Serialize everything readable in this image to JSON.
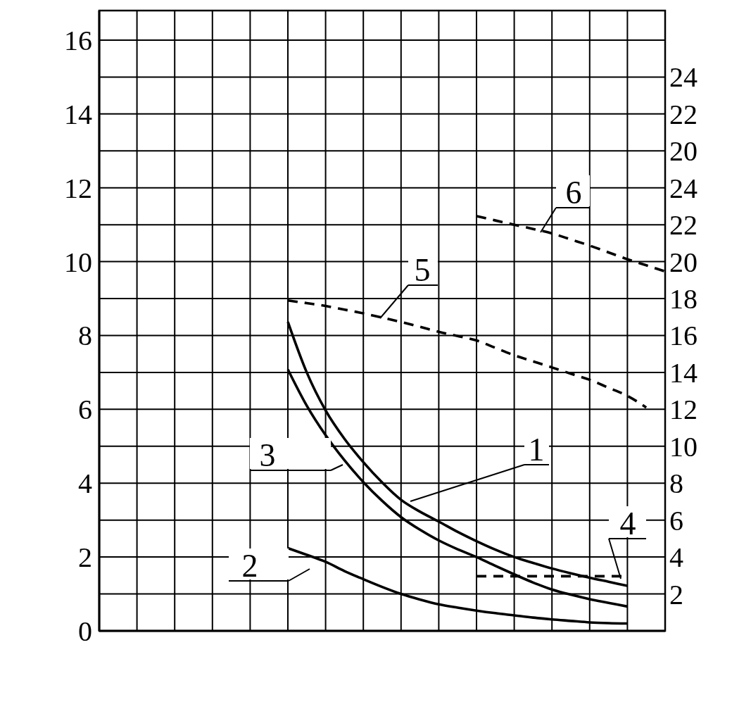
{
  "chart_data": {
    "type": "line",
    "categories": [
      null,
      null,
      null,
      null,
      null,
      null,
      null,
      null,
      null,
      null,
      null,
      null,
      null,
      null,
      null,
      null,
      null,
      null,
      null,
      null,
      null,
      null,
      null,
      null,
      null,
      null,
      null,
      null,
      null,
      null,
      null
    ],
    "ylim": [
      0,
      16.8
    ],
    "yticks": [
      0,
      {
        "value": 1,
        "label": null
      },
      2,
      {
        "value": 3,
        "label": null
      },
      4,
      {
        "value": 5,
        "label": null
      },
      6,
      {
        "value": 7,
        "label": null
      },
      8,
      {
        "value": 9,
        "label": null
      },
      10,
      {
        "value": 11,
        "label": null
      },
      12,
      {
        "value": 13,
        "label": null
      },
      14,
      {
        "value": 15,
        "label": null
      },
      16
    ],
    "y2lim": [
      0,
      33.6
    ],
    "y2ticks": [
      2,
      4,
      6,
      8,
      10,
      12,
      14,
      16,
      18,
      20,
      22,
      24
    ],
    "y3lim": [
      -6,
      27.6
    ],
    "y3ticks": [
      20,
      22,
      24
    ],
    "grid": true,
    "marker": "none",
    "series": [
      {
        "color": "#000000",
        "line_style": "solid",
        "values": [
          null,
          null,
          null,
          null,
          null,
          null,
          null,
          null,
          null,
          null,
          8.37,
          7.0,
          5.97,
          5.2,
          4.57,
          4.02,
          3.55,
          3.23,
          2.96,
          2.68,
          2.43,
          2.2,
          2.0,
          1.84,
          1.69,
          1.56,
          1.44,
          1.33,
          1.22,
          null,
          null
        ]
      },
      {
        "color": "#000000",
        "line_style": "solid",
        "values": [
          null,
          null,
          null,
          null,
          null,
          null,
          null,
          null,
          null,
          null,
          2.24,
          2.06,
          1.87,
          1.62,
          1.4,
          1.19,
          1.0,
          0.85,
          0.72,
          0.63,
          0.55,
          0.48,
          0.42,
          0.36,
          0.31,
          0.27,
          0.23,
          0.21,
          0.2,
          null,
          null
        ]
      },
      {
        "color": "#000000",
        "line_style": "solid",
        "values": [
          null,
          null,
          null,
          null,
          null,
          null,
          null,
          null,
          null,
          null,
          7.08,
          6.1,
          5.3,
          4.62,
          4.03,
          3.52,
          3.08,
          2.74,
          2.45,
          2.21,
          2.0,
          1.76,
          1.53,
          1.31,
          1.12,
          0.98,
          0.86,
          0.76,
          0.66,
          null,
          null
        ]
      },
      {
        "color": "#000000",
        "line_style": "dashed",
        "axis": "y2",
        "values": [
          null,
          null,
          null,
          null,
          null,
          null,
          null,
          null,
          null,
          null,
          null,
          null,
          null,
          null,
          null,
          null,
          null,
          null,
          null,
          null,
          2.96,
          2.96,
          2.96,
          2.96,
          2.96,
          2.96,
          2.96,
          2.96,
          2.96,
          null,
          null
        ]
      },
      {
        "color": "#000000",
        "line_style": "dashed",
        "axis": "y2",
        "values": [
          null,
          null,
          null,
          null,
          null,
          null,
          null,
          null,
          null,
          null,
          17.9,
          17.75,
          17.6,
          17.4,
          17.2,
          16.97,
          16.73,
          16.47,
          16.2,
          15.97,
          15.73,
          15.33,
          14.93,
          14.6,
          14.27,
          13.93,
          13.6,
          13.17,
          12.73,
          12.1,
          null
        ]
      },
      {
        "color": "#000000",
        "line_style": "dashed",
        "axis": "y2",
        "values": [
          null,
          null,
          null,
          null,
          null,
          null,
          null,
          null,
          null,
          null,
          null,
          null,
          null,
          null,
          null,
          null,
          null,
          null,
          null,
          null,
          22.47,
          22.23,
          22.0,
          21.77,
          21.53,
          21.2,
          20.87,
          20.5,
          20.13,
          19.8,
          19.47
        ]
      }
    ],
    "annotations": [
      "1",
      "2",
      "3",
      "4",
      "5",
      "6"
    ]
  }
}
